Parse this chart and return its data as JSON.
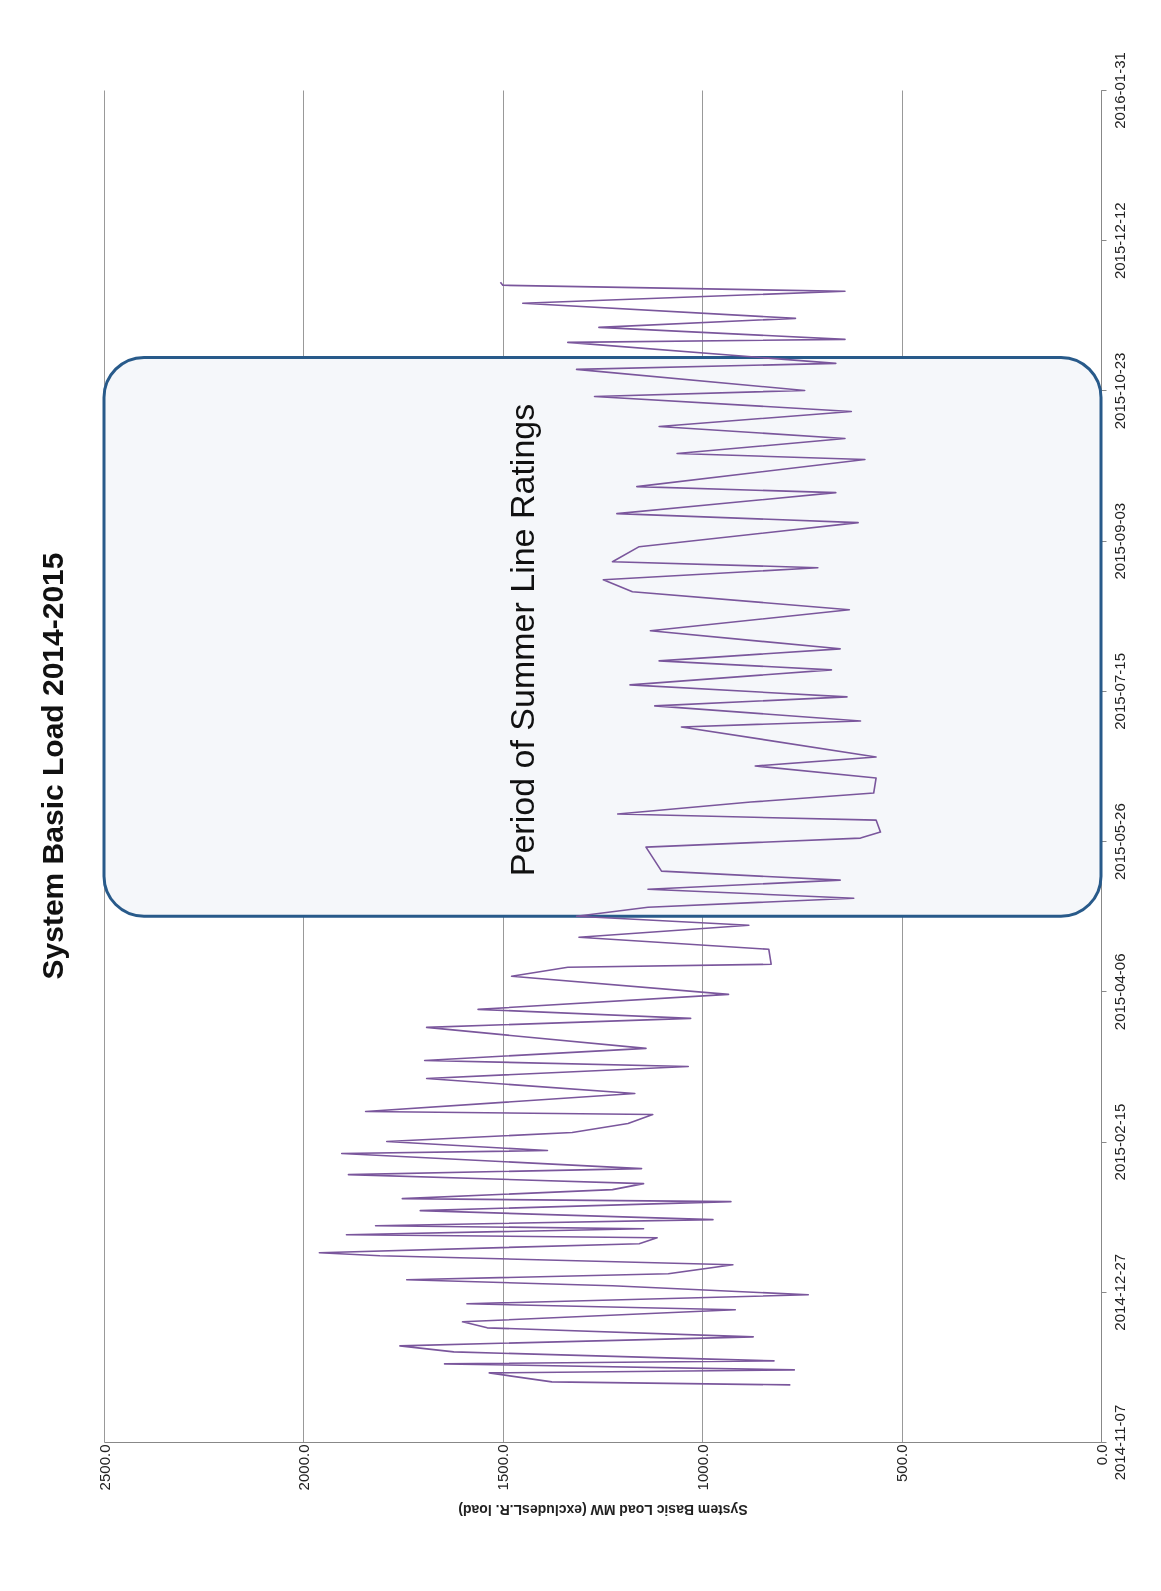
{
  "chart_data": {
    "type": "line",
    "orientation": "horizontal",
    "title": "System Basic Load 2014-2015",
    "xlabel": "System Basic Load MW (excludesL.R. load)",
    "x": [
      "2014-11-26",
      "2014-11-27",
      "2014-11-30",
      "2014-12-01",
      "2014-12-03",
      "2014-12-04",
      "2014-12-07",
      "2014-12-09",
      "2014-12-12",
      "2014-12-15",
      "2014-12-17",
      "2014-12-21",
      "2014-12-23",
      "2014-12-26",
      "2014-12-29",
      "2014-12-31",
      "2015-01-02",
      "2015-01-05",
      "2015-01-08",
      "2015-01-09",
      "2015-01-12",
      "2015-01-14",
      "2015-01-15",
      "2015-01-17",
      "2015-01-18",
      "2015-01-20",
      "2015-01-23",
      "2015-01-26",
      "2015-01-27",
      "2015-01-30",
      "2015-02-01",
      "2015-02-04",
      "2015-02-06",
      "2015-02-11",
      "2015-02-12",
      "2015-02-15",
      "2015-02-18",
      "2015-02-21",
      "2015-02-24",
      "2015-02-25",
      "2015-03-03",
      "2015-03-08",
      "2015-03-12",
      "2015-03-14",
      "2015-03-18",
      "2015-03-25",
      "2015-03-28",
      "2015-03-31",
      "2015-04-05",
      "2015-04-11",
      "2015-04-14",
      "2015-04-15",
      "2015-04-20",
      "2015-04-24",
      "2015-04-28",
      "2015-05-01",
      "2015-05-04",
      "2015-05-07",
      "2015-05-10",
      "2015-05-13",
      "2015-05-16",
      "2015-05-24",
      "2015-05-27",
      "2015-05-29",
      "2015-06-02",
      "2015-06-04",
      "2015-06-08",
      "2015-06-11",
      "2015-06-16",
      "2015-06-20",
      "2015-06-23",
      "2015-07-03",
      "2015-07-05",
      "2015-07-10",
      "2015-07-13",
      "2015-07-17",
      "2015-07-22",
      "2015-07-25",
      "2015-07-29",
      "2015-08-04",
      "2015-08-11",
      "2015-08-17",
      "2015-08-21",
      "2015-08-25",
      "2015-08-27",
      "2015-09-01",
      "2015-09-09",
      "2015-09-12",
      "2015-09-19",
      "2015-09-21",
      "2015-09-30",
      "2015-10-02",
      "2015-10-07",
      "2015-10-11",
      "2015-10-16",
      "2015-10-21",
      "2015-10-23",
      "2015-10-30",
      "2015-11-01",
      "2015-11-08",
      "2015-11-09",
      "2015-11-13",
      "2015-11-16",
      "2015-11-21",
      "2015-11-25",
      "2015-11-27",
      "2015-11-28"
    ],
    "series": [
      {
        "color": "#7a569c",
        "values": [
          779,
          1377,
          1534,
          769,
          1646,
          820,
          1623,
          1758,
          872,
          1539,
          1601,
          917,
          1590,
          734,
          1225,
          1741,
          1085,
          923,
          1808,
          1960,
          1158,
          1113,
          1892,
          1147,
          1819,
          973,
          1707,
          928,
          1752,
          1225,
          1147,
          1887,
          1152,
          1904,
          1388,
          1791,
          1326,
          1186,
          1124,
          1844,
          1169,
          1691,
          1035,
          1696,
          1141,
          1691,
          1029,
          1562,
          934,
          1478,
          1337,
          827,
          833,
          1309,
          883,
          1315,
          1136,
          620,
          1136,
          654,
          1102,
          1141,
          603,
          553,
          564,
          1212,
          878,
          570,
          564,
          867,
          564,
          1052,
          603,
          1119,
          637,
          1181,
          676,
          1108,
          654,
          1130,
          631,
          1175,
          1248,
          710,
          1225,
          1158,
          609,
          1214,
          665,
          1164,
          592,
          1063,
          642,
          1108,
          626,
          1270,
          743,
          1315,
          665,
          1337,
          642,
          1259,
          766,
          1450,
          642,
          1500,
          1506
        ]
      }
    ],
    "ylim": [
      "2014-11-07",
      "2016-01-31"
    ],
    "yticks": [
      "2014-11-07",
      "2014-12-27",
      "2015-02-15",
      "2015-04-06",
      "2015-05-26",
      "2015-07-15",
      "2015-09-03",
      "2015-10-23",
      "2015-12-12",
      "2016-01-31"
    ],
    "xlim": [
      2500,
      0
    ],
    "xticks": [
      {
        "value": 2500,
        "label": "2500.0"
      },
      {
        "value": 2000,
        "label": "2000.0"
      },
      {
        "value": 1500,
        "label": "1500.0"
      },
      {
        "value": 1000,
        "label": "1000.0"
      },
      {
        "value": 500,
        "label": "500.0"
      },
      {
        "value": 0,
        "label": "0.0"
      }
    ],
    "grid": "x",
    "bands": [
      {
        "axis": "y",
        "from": "2015-05-01",
        "to": "2015-11-03",
        "label": "Period of Summer Line Ratings",
        "color": "#f5f7fa"
      }
    ]
  }
}
